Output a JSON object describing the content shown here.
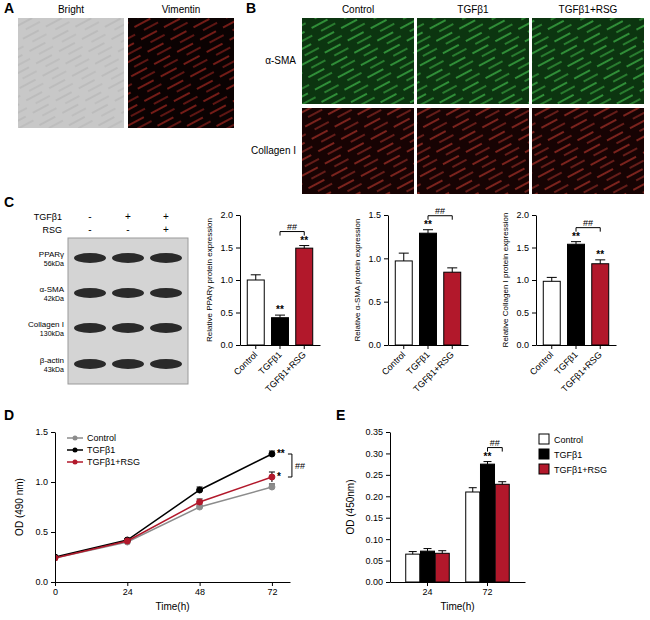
{
  "figure": {
    "panel_labels": [
      "A",
      "B",
      "C",
      "D",
      "E"
    ],
    "panel_a": {
      "images": [
        "Bright",
        "Vimentin"
      ]
    },
    "panel_b": {
      "columns": [
        "Control",
        "TGFβ1",
        "TGFβ1+RSG"
      ],
      "rows": [
        "α-SMA",
        "Collagen I"
      ]
    },
    "blot": {
      "treatments": [
        {
          "label": "TGFβ1",
          "signs": [
            "-",
            "+",
            "+"
          ]
        },
        {
          "label": "RSG",
          "signs": [
            "-",
            "-",
            "+"
          ]
        }
      ],
      "bands": [
        {
          "name": "PPARγ",
          "size": "56kDa"
        },
        {
          "name": "α-SMA",
          "size": "42kDa"
        },
        {
          "name": "Collagen I",
          "size": "130kDa"
        },
        {
          "name": "β-actin",
          "size": "43kDa"
        }
      ]
    }
  },
  "chart_data": [
    {
      "type": "bar",
      "ylabel": "Relative PPARγ protein expression",
      "categories": [
        "Control",
        "TGFβ1",
        "TGFβ1+RSG"
      ],
      "values": [
        1.0,
        0.42,
        1.49
      ],
      "errors": [
        0.08,
        0.04,
        0.04
      ],
      "colors": [
        "#ffffff",
        "#000000",
        "#b2182b"
      ],
      "ylim": [
        0,
        2
      ],
      "yticks": [
        {
          "value": 0,
          "label": "0.0"
        },
        0.5,
        {
          "value": 1,
          "label": "1.0"
        },
        1.5,
        {
          "value": 2,
          "label": "2.0"
        }
      ],
      "annotations": [
        {
          "text": "**",
          "category": 1
        },
        {
          "text": "**",
          "category": 2
        },
        {
          "text": "##",
          "from": 1,
          "to": 2
        }
      ]
    },
    {
      "type": "bar",
      "ylabel": "Relative α-SMA protein expression",
      "categories": [
        "Control",
        "TGFβ1",
        "TGFβ1+RSG"
      ],
      "values": [
        0.97,
        1.29,
        0.84
      ],
      "errors": [
        0.09,
        0.04,
        0.05
      ],
      "colors": [
        "#ffffff",
        "#000000",
        "#b2182b"
      ],
      "ylim": [
        0,
        1.5
      ],
      "yticks": [
        {
          "value": 0,
          "label": "0.0"
        },
        0.5,
        {
          "value": 1,
          "label": "1.0"
        },
        1.5
      ],
      "annotations": [
        {
          "text": "**",
          "category": 1
        },
        {
          "text": "##",
          "from": 1,
          "to": 2
        }
      ]
    },
    {
      "type": "bar",
      "ylabel": "Relative Collagen I protein expression",
      "categories": [
        "Control",
        "TGFβ1",
        "TGFβ1+RSG"
      ],
      "values": [
        0.98,
        1.55,
        1.25
      ],
      "errors": [
        0.06,
        0.04,
        0.06
      ],
      "colors": [
        "#ffffff",
        "#000000",
        "#b2182b"
      ],
      "ylim": [
        0,
        2
      ],
      "yticks": [
        {
          "value": 0,
          "label": "0.0"
        },
        0.5,
        {
          "value": 1,
          "label": "1.0"
        },
        1.5,
        {
          "value": 2,
          "label": "2.0"
        }
      ],
      "annotations": [
        {
          "text": "**",
          "category": 1
        },
        {
          "text": "**",
          "category": 2
        },
        {
          "text": "##",
          "from": 1,
          "to": 2
        }
      ]
    },
    {
      "type": "line",
      "xlabel": "Time(h)",
      "ylabel": "OD (490 nm)",
      "x": [
        0,
        24,
        48,
        72
      ],
      "xlim": [
        0,
        78
      ],
      "xticks": [
        0,
        24,
        48,
        72
      ],
      "ylim": [
        0,
        1.5
      ],
      "yticks": [
        {
          "value": 0,
          "label": "0.0"
        },
        0.5,
        {
          "value": 1,
          "label": "1.0"
        },
        1.5
      ],
      "legend": "upper left",
      "marker": "circle",
      "series": [
        {
          "name": "Control",
          "color": "#8c8c8c",
          "values": [
            0.24,
            0.4,
            0.75,
            0.95
          ],
          "errors": [
            0.01,
            0.01,
            0.02,
            0.03
          ]
        },
        {
          "name": "TGFβ1",
          "color": "#000000",
          "values": [
            0.25,
            0.42,
            0.92,
            1.28
          ],
          "errors": [
            0.01,
            0.01,
            0.03,
            0.03
          ]
        },
        {
          "name": "TGFβ1+RSG",
          "color": "#b2182b",
          "values": [
            0.24,
            0.41,
            0.8,
            1.05
          ],
          "errors": [
            0.01,
            0.01,
            0.03,
            0.05
          ]
        }
      ],
      "annotations": [
        {
          "text": "**",
          "series": 1,
          "point": 3
        },
        {
          "text": "*",
          "series": 2,
          "point": 3
        },
        {
          "text": "##",
          "point": 3,
          "from": 1,
          "to": 2
        }
      ]
    },
    {
      "type": "bar",
      "xlabel": "Time(h)",
      "ylabel": "OD (450nm)",
      "categories": [
        "24",
        "72"
      ],
      "ylim": [
        0,
        0.35
      ],
      "yticks": [
        {
          "value": 0,
          "label": "0.00"
        },
        0.05,
        {
          "value": 0.1,
          "label": "0.10"
        },
        0.15,
        {
          "value": 0.2,
          "label": "0.20"
        },
        0.25,
        {
          "value": 0.3,
          "label": "0.30"
        },
        0.35
      ],
      "legend": "right",
      "series": [
        {
          "name": "Control",
          "color": "#ffffff",
          "values": [
            0.065,
            0.21
          ],
          "errors": [
            0.006,
            0.01
          ]
        },
        {
          "name": "TGFβ1",
          "color": "#000000",
          "values": [
            0.072,
            0.275
          ],
          "errors": [
            0.006,
            0.006
          ]
        },
        {
          "name": "TGFβ1+RSG",
          "color": "#b2182b",
          "values": [
            0.067,
            0.228
          ],
          "errors": [
            0.006,
            0.006
          ]
        }
      ],
      "annotations": [
        {
          "text": "**",
          "category": 1,
          "series": 1
        },
        {
          "text": "##",
          "category": 1,
          "from": 1,
          "to": 2
        }
      ]
    }
  ]
}
